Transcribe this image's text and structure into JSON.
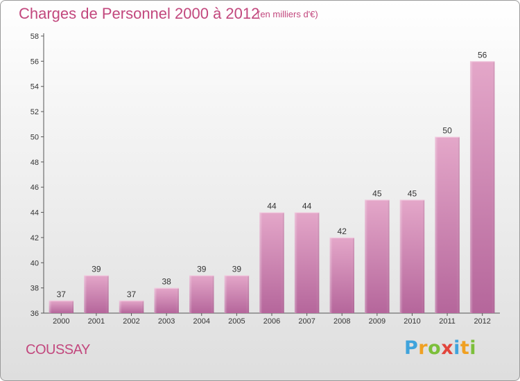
{
  "chart_data": {
    "type": "bar",
    "title": "Charges de Personnel 2000 à 2012",
    "subtitle": "(en milliers d'€)",
    "categories": [
      "2000",
      "2001",
      "2002",
      "2003",
      "2004",
      "2005",
      "2006",
      "2007",
      "2008",
      "2009",
      "2010",
      "2011",
      "2012"
    ],
    "values": [
      37,
      39,
      37,
      38,
      39,
      39,
      44,
      44,
      42,
      45,
      45,
      50,
      56
    ],
    "ylim": [
      36,
      58
    ],
    "yticks": [
      36,
      38,
      40,
      42,
      44,
      46,
      48,
      50,
      52,
      54,
      56,
      58
    ],
    "xlabel": "",
    "ylabel": "",
    "grid": false,
    "bar_color": "#d98bb5"
  },
  "commune": "COUSSAY",
  "logo": {
    "p": "P",
    "r": "r",
    "o": "o",
    "x": "x",
    "i1": "i",
    "t": "t",
    "i2": "i"
  }
}
